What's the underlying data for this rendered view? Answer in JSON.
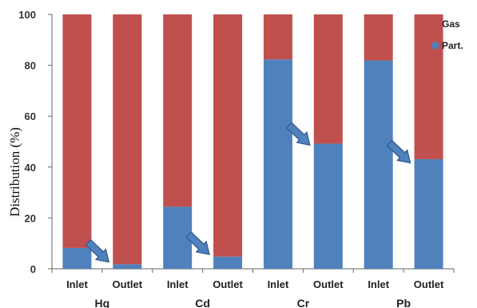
{
  "chart_data": {
    "type": "bar",
    "stacked": true,
    "categories": [
      "Inlet",
      "Outlet",
      "Inlet",
      "Outlet",
      "Inlet",
      "Outlet",
      "Inlet",
      "Outlet"
    ],
    "groups": [
      {
        "label": "Hg",
        "categories": [
          "Inlet",
          "Outlet"
        ]
      },
      {
        "label": "Cd",
        "categories": [
          "Inlet",
          "Outlet"
        ]
      },
      {
        "label": "Cr",
        "categories": [
          "Inlet",
          "Outlet"
        ]
      },
      {
        "label": "Pb",
        "categories": [
          "Inlet",
          "Outlet"
        ]
      }
    ],
    "series": [
      {
        "name": "Part.",
        "color": "#4f81bd",
        "values": [
          8.2,
          1.8,
          24.4,
          4.8,
          82.3,
          49.2,
          81.9,
          43.1
        ]
      },
      {
        "name": "Gas",
        "color": "#c0504d",
        "values": [
          91.8,
          98.2,
          75.6,
          95.2,
          17.7,
          50.8,
          18.1,
          56.9
        ]
      }
    ],
    "legend_order": [
      "Gas",
      "Part."
    ],
    "legend_position": "top-right",
    "ylabel": "Distribution (%)",
    "xlabel": "",
    "ylim": [
      0,
      100
    ],
    "yticks": [
      0,
      20,
      40,
      60,
      80,
      100
    ],
    "grid": false,
    "arrows": [
      {
        "between": [
          "Hg Inlet",
          "Hg Outlet"
        ],
        "points_to": 2
      },
      {
        "between": [
          "Cd Inlet",
          "Cd Outlet"
        ],
        "points_to": 5
      },
      {
        "between": [
          "Cr Inlet",
          "Cr Outlet"
        ],
        "points_to": 48
      },
      {
        "between": [
          "Pb Inlet",
          "Pb Outlet"
        ],
        "points_to": 41
      }
    ],
    "arrow_color": "#4f81bd"
  }
}
